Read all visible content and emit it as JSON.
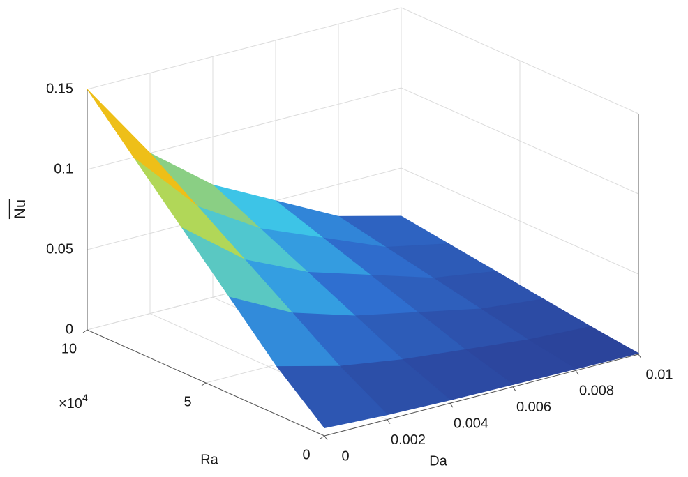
{
  "chart_data": {
    "type": "surface",
    "xlabel": "Da",
    "ylabel": "Ra",
    "zlabel": "Nu",
    "x": [
      0,
      0.002,
      0.004,
      0.006,
      0.008,
      0.01
    ],
    "y": [
      0,
      2,
      4,
      6,
      8,
      10
    ],
    "z": [
      [
        0.005,
        0.003,
        0.002,
        0.0015,
        0.001,
        0.0006
      ],
      [
        0.03,
        0.02,
        0.014,
        0.01,
        0.006,
        0.004
      ],
      [
        0.06,
        0.04,
        0.028,
        0.02,
        0.012,
        0.008
      ],
      [
        0.09,
        0.06,
        0.042,
        0.03,
        0.018,
        0.012
      ],
      [
        0.12,
        0.08,
        0.056,
        0.04,
        0.024,
        0.016
      ],
      [
        0.15,
        0.1,
        0.07,
        0.05,
        0.03,
        0.02
      ]
    ],
    "xlim": [
      0,
      0.01
    ],
    "xticks": [
      0,
      0.002,
      0.004,
      0.006,
      0.008,
      0.01
    ],
    "ylim": [
      0,
      10
    ],
    "yticks": [
      0,
      5,
      10
    ],
    "y_exponent": {
      "base": "×10",
      "power": "4"
    },
    "zlim": [
      0,
      0.15
    ],
    "zticks": [
      0,
      0.05,
      0.1,
      0.15
    ],
    "grid": true,
    "colormap": "jet"
  }
}
